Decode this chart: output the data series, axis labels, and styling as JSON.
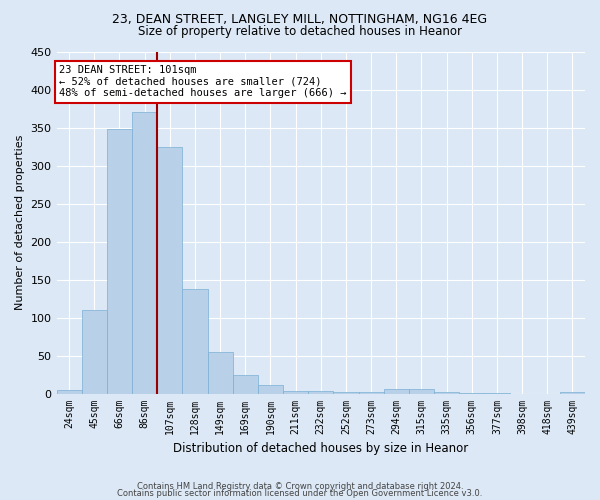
{
  "title1": "23, DEAN STREET, LANGLEY MILL, NOTTINGHAM, NG16 4EG",
  "title2": "Size of property relative to detached houses in Heanor",
  "xlabel": "Distribution of detached houses by size in Heanor",
  "ylabel": "Number of detached properties",
  "bar_color": "#b8d0e8",
  "bar_edge_color": "#7aafd4",
  "background_color": "#dce8f5",
  "grid_color": "#ffffff",
  "categories": [
    "24sqm",
    "45sqm",
    "66sqm",
    "86sqm",
    "107sqm",
    "128sqm",
    "149sqm",
    "169sqm",
    "190sqm",
    "211sqm",
    "232sqm",
    "252sqm",
    "273sqm",
    "294sqm",
    "315sqm",
    "335sqm",
    "356sqm",
    "377sqm",
    "398sqm",
    "418sqm",
    "439sqm"
  ],
  "values": [
    5,
    110,
    348,
    370,
    324,
    137,
    55,
    25,
    11,
    4,
    4,
    2,
    2,
    6,
    6,
    2,
    1,
    1,
    0,
    0,
    2
  ],
  "vline_position": 3.5,
  "vline_color": "#990000",
  "property_label": "23 DEAN STREET: 101sqm",
  "annotation_line1": "← 52% of detached houses are smaller (724)",
  "annotation_line2": "48% of semi-detached houses are larger (666) →",
  "annotation_box_color": "#ffffff",
  "annotation_box_edge_color": "#cc0000",
  "ylim": [
    0,
    450
  ],
  "yticks": [
    0,
    50,
    100,
    150,
    200,
    250,
    300,
    350,
    400,
    450
  ],
  "footer1": "Contains HM Land Registry data © Crown copyright and database right 2024.",
  "footer2": "Contains public sector information licensed under the Open Government Licence v3.0."
}
